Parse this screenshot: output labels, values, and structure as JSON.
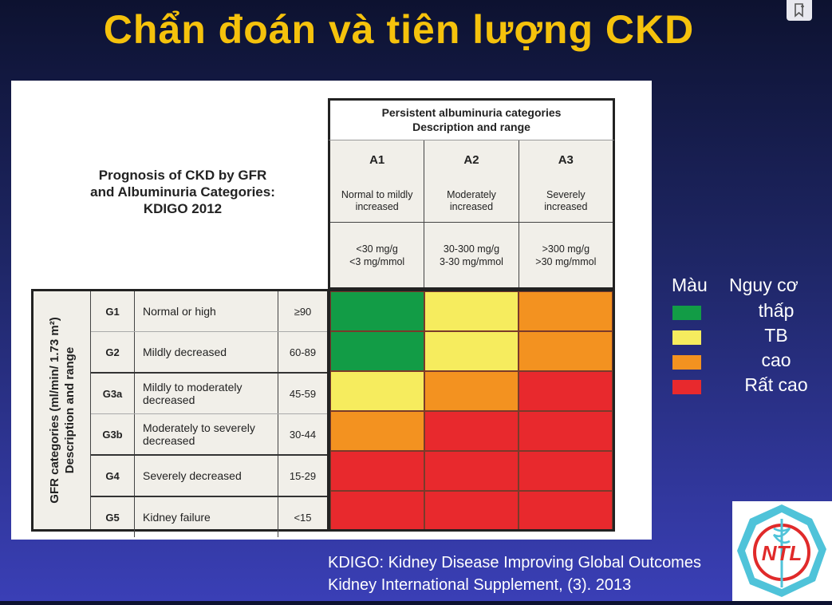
{
  "title": "Chẩn đoán và tiên lượng CKD",
  "caption": [
    "Prognosis of CKD by GFR",
    "and Albuminuria Categories:",
    "KDIGO 2012"
  ],
  "albuminuria_header": [
    "Persistent albuminuria categories",
    "Description and range"
  ],
  "albuminuria": [
    {
      "code": "A1",
      "desc": "Normal to mildly increased",
      "range1": "<30 mg/g",
      "range2": "<3 mg/mmol"
    },
    {
      "code": "A2",
      "desc": "Moderately increased",
      "range1": "30-300 mg/g",
      "range2": "3-30 mg/mmol"
    },
    {
      "code": "A3",
      "desc": "Severely increased",
      "range1": ">300 mg/g",
      "range2": ">30 mg/mmol"
    }
  ],
  "gfr_axis_label": [
    "GFR categories (ml/min/ 1.73 m²)",
    "Description and range"
  ],
  "gfr_groups": [
    [
      {
        "code": "G1",
        "desc": "Normal or high",
        "range": "≥90"
      },
      {
        "code": "G2",
        "desc": "Mildly decreased",
        "range": "60-89"
      }
    ],
    [
      {
        "code": "G3a",
        "desc": "Mildly to moderately decreased",
        "range": "45-59"
      },
      {
        "code": "G3b",
        "desc": "Moderately to severely decreased",
        "range": "30-44"
      }
    ],
    [
      {
        "code": "G4",
        "desc": "Severely decreased",
        "range": "15-29"
      }
    ],
    [
      {
        "code": "G5",
        "desc": "Kidney failure",
        "range": "<15"
      }
    ]
  ],
  "risk_colors": {
    "low": "#129c46",
    "moderate": "#f6ec5e",
    "high": "#f39220",
    "very_high": "#e8292d"
  },
  "risk_grid": [
    [
      "low",
      "moderate",
      "high"
    ],
    [
      "low",
      "moderate",
      "high"
    ],
    [
      "moderate",
      "high",
      "very_high"
    ],
    [
      "high",
      "very_high",
      "very_high"
    ],
    [
      "very_high",
      "very_high",
      "very_high"
    ],
    [
      "very_high",
      "very_high",
      "very_high"
    ]
  ],
  "legend": {
    "col1_header": "Màu",
    "col2_header": "Nguy cơ",
    "items": [
      {
        "label": "thấp",
        "color": "#129c46"
      },
      {
        "label": "TB",
        "color": "#f6ec5e"
      },
      {
        "label": "cao",
        "color": "#f39220"
      },
      {
        "label": "Rất cao",
        "color": "#e8292d"
      }
    ]
  },
  "credits": [
    "KDIGO: Kidney Disease Improving Global Outcomes",
    "Kidney International Supplement, (3). 2013"
  ],
  "logo_text": "NTL",
  "icons": {
    "bookmark": "bookmark-add-icon"
  }
}
